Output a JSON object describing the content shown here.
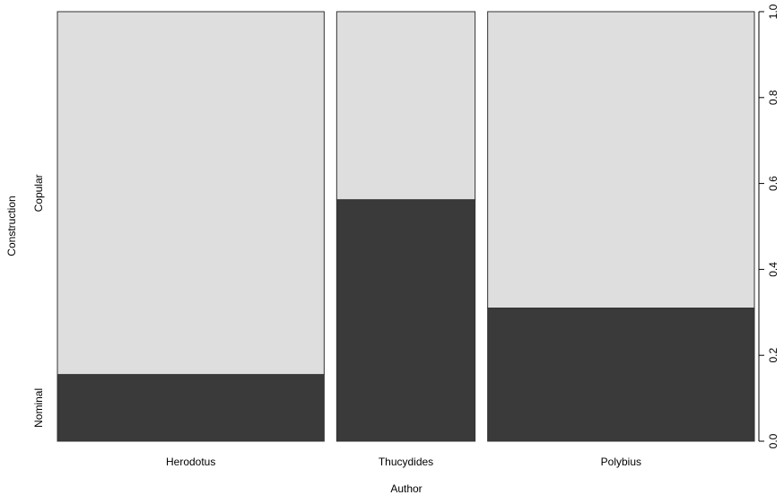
{
  "chart_data": {
    "type": "spineplot",
    "xlabel": "Author",
    "ylabel": "Construction",
    "categories": [
      "Herodotus",
      "Thucydides",
      "Polybius"
    ],
    "category_widths": [
      0.4215,
      0.2187,
      0.4215
    ],
    "levels": [
      "Nominal",
      "Copular"
    ],
    "series": [
      {
        "name": "Nominal",
        "values": [
          0.155,
          0.562,
          0.31
        ]
      },
      {
        "name": "Copular",
        "values": [
          0.845,
          0.438,
          0.69
        ]
      }
    ],
    "ylim": [
      0,
      1
    ],
    "yticks": [
      "0.0",
      "0.2",
      "0.4",
      "0.6",
      "0.8",
      "1.0"
    ],
    "colors": {
      "Nominal": "#3a3a3a",
      "Copular": "#dedede",
      "border": "#333333"
    },
    "grid": false,
    "legend": "none"
  }
}
